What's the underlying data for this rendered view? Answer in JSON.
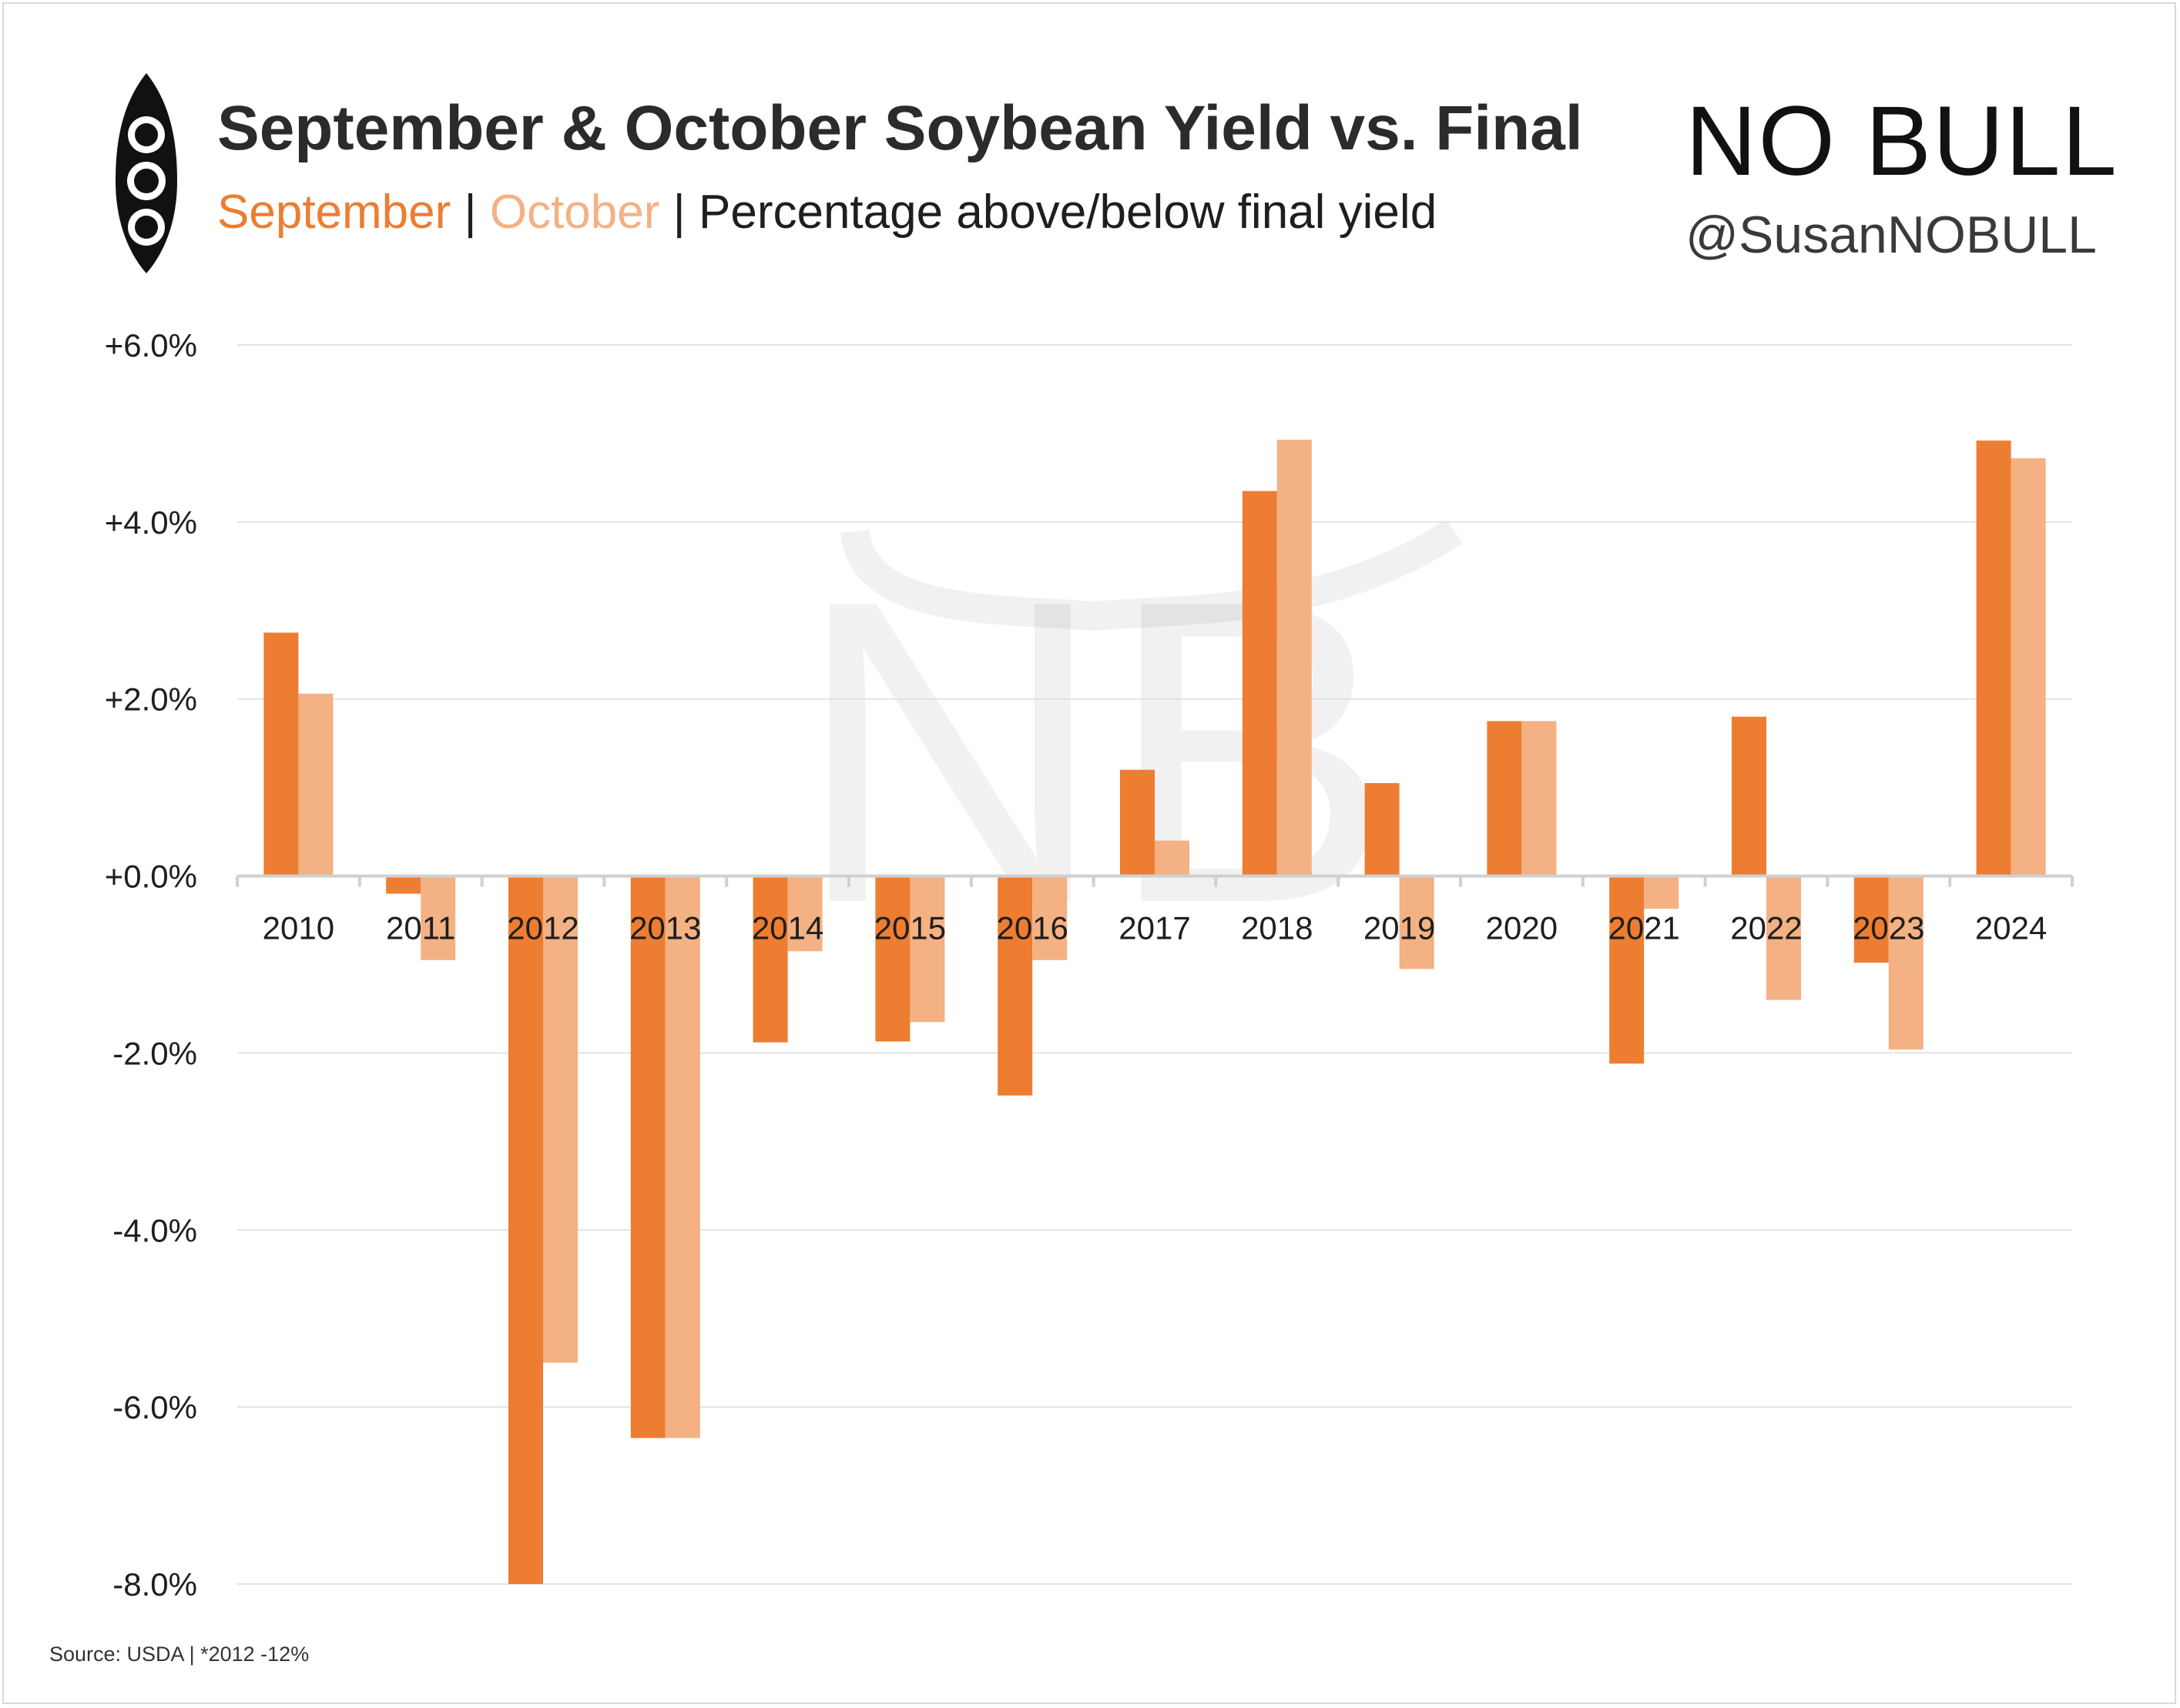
{
  "header": {
    "title": "September & October Soybean Yield vs. Final",
    "subtitle_sep1": "|",
    "subtitle_sep2": "|",
    "subtitle_rest": "Percentage above/below final yield",
    "icon": "soybean-pod-icon"
  },
  "brand": {
    "logo": "NO BULL",
    "handle": "@SusanNOBULL",
    "watermark": "NB"
  },
  "source_note": "Source: USDA | *2012 -12%",
  "colors": {
    "september": "#ED7D31",
    "october": "#F4B183",
    "grid": "#e3e3e3",
    "axis": "#d0d0d0",
    "text": "#1e1e1e"
  },
  "chart_data": {
    "type": "bar",
    "categories": [
      "2010",
      "2011",
      "2012",
      "2013",
      "2014",
      "2015",
      "2016",
      "2017",
      "2018",
      "2019",
      "2020",
      "2021",
      "2022",
      "2023",
      "2024"
    ],
    "series": [
      {
        "name": "September",
        "values": [
          2.75,
          -0.2,
          -8.0,
          -6.35,
          -1.88,
          -1.87,
          -2.48,
          1.2,
          4.35,
          1.05,
          1.75,
          -2.12,
          1.8,
          -0.98,
          4.92
        ]
      },
      {
        "name": "October",
        "values": [
          2.06,
          -0.95,
          -5.5,
          -6.35,
          -0.85,
          -1.65,
          -0.95,
          0.4,
          4.93,
          -1.05,
          1.75,
          -0.37,
          -1.4,
          -1.96,
          4.72
        ]
      }
    ],
    "ylim": [
      -8.0,
      6.0
    ],
    "yticks": [
      6.0,
      4.0,
      2.0,
      0.0,
      -2.0,
      -4.0,
      -6.0,
      -8.0
    ],
    "ytick_labels": [
      "+6.0%",
      "+4.0%",
      "+2.0%",
      "+0.0%",
      "-2.0%",
      "-4.0%",
      "-6.0%",
      "-8.0%"
    ],
    "grid": true,
    "legend": "in subtitle"
  }
}
